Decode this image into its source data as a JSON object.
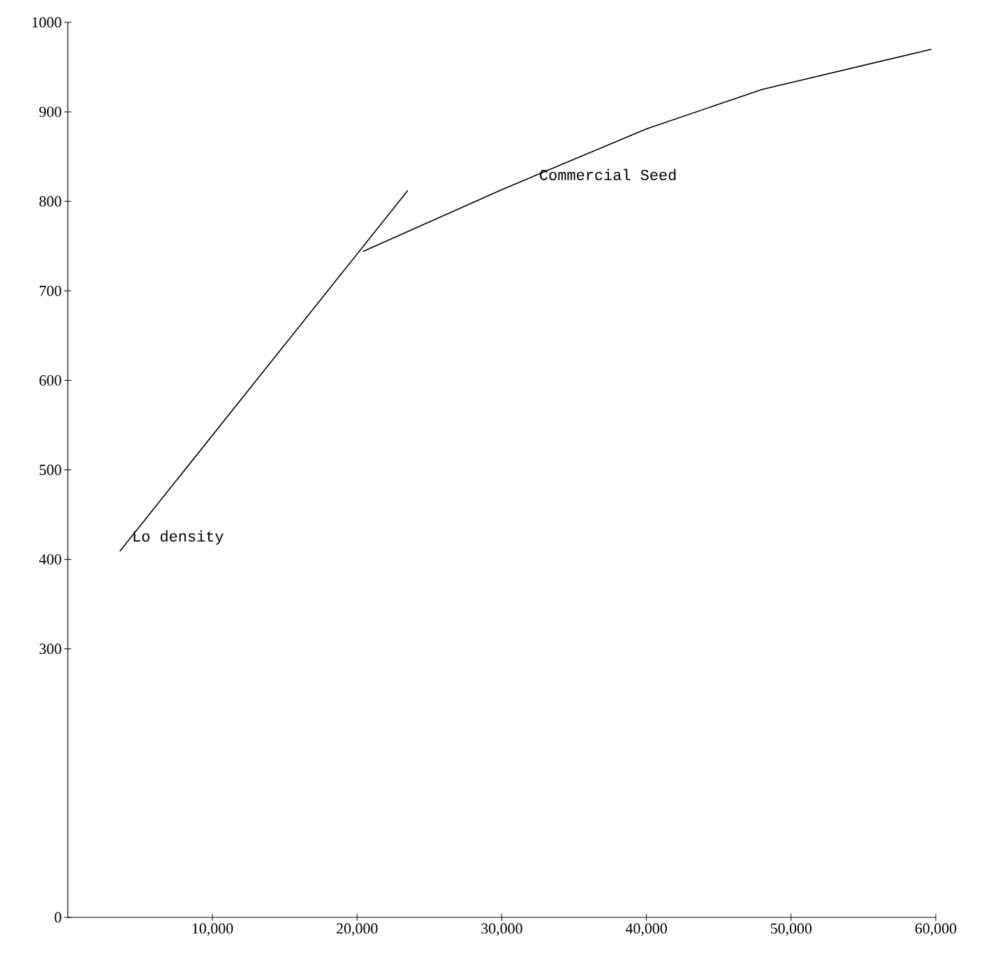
{
  "chart_data": {
    "type": "line",
    "xlim": [
      0,
      60000
    ],
    "ylim": [
      0,
      1000
    ],
    "xticks": [
      {
        "value": 10000,
        "label": "10,000"
      },
      {
        "value": 20000,
        "label": "20,000"
      },
      {
        "value": 30000,
        "label": "30,000"
      },
      {
        "value": 40000,
        "label": "40,000"
      },
      {
        "value": 50000,
        "label": "50,000"
      },
      {
        "value": 60000,
        "label": "60,000"
      }
    ],
    "yticks": [
      0,
      300,
      400,
      500,
      600,
      700,
      800,
      900,
      1000
    ],
    "series": [
      {
        "name": "Lo density",
        "color": "#000000",
        "x": [
          3600,
          23500
        ],
        "values": [
          409,
          812
        ]
      },
      {
        "name": "Commercial Seed",
        "color": "#000000",
        "x": [
          20400,
          30000,
          40000,
          48000,
          59700
        ],
        "values": [
          744,
          813,
          881,
          925,
          970
        ]
      }
    ]
  }
}
